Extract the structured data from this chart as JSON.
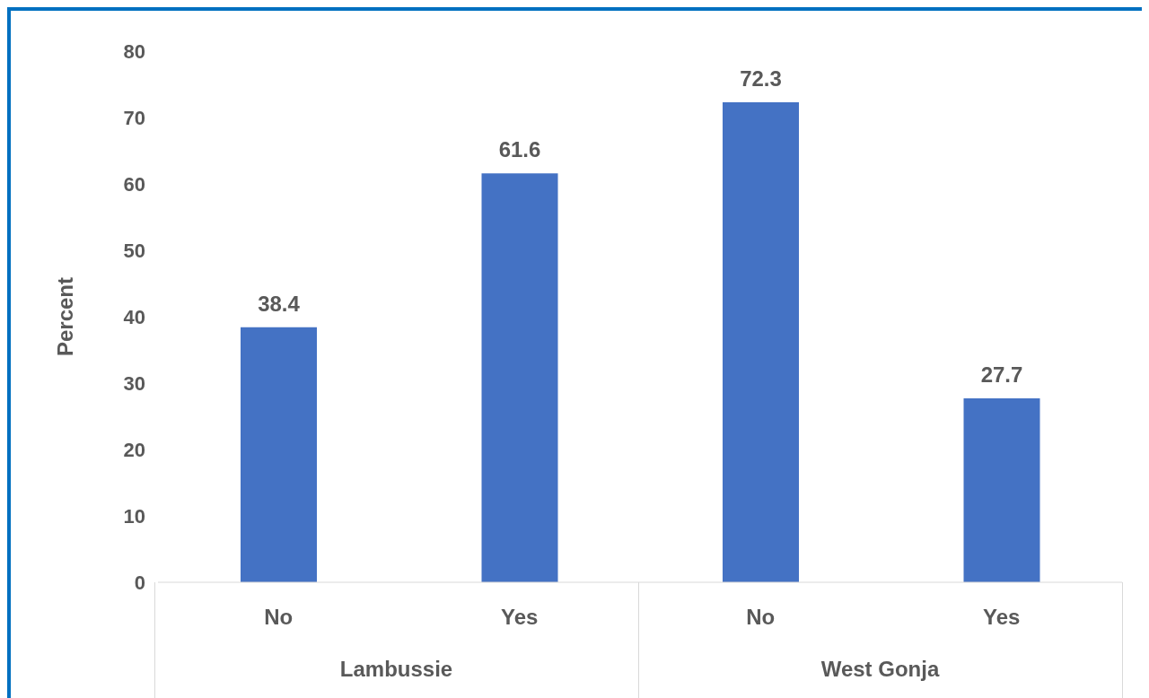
{
  "chart_data": {
    "type": "bar",
    "ylabel": "Percent",
    "categories": [
      "No",
      "Yes",
      "No",
      "Yes"
    ],
    "values": [
      38.4,
      61.6,
      72.3,
      27.7
    ],
    "color": "#4472c4",
    "ylim": [
      0,
      80
    ],
    "yticks": [
      0,
      10,
      20,
      30,
      40,
      50,
      60,
      70,
      80
    ],
    "data_labels": true,
    "annotations": [
      "Lambussie",
      "West Gonja"
    ]
  }
}
